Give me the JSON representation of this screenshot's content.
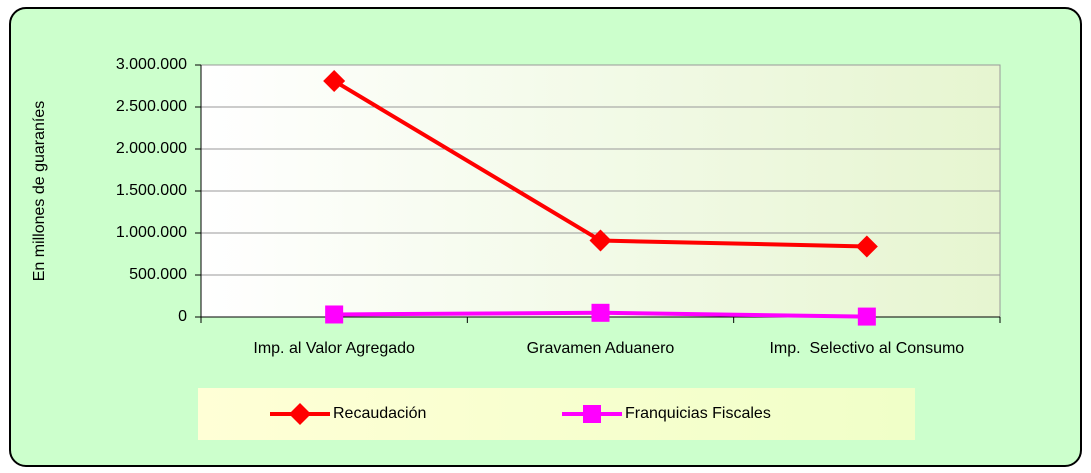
{
  "chart_data": {
    "type": "line",
    "y_label": "En millones de guaraníes",
    "categories": [
      "Imp. al Valor Agregado",
      "Gravamen Aduanero",
      "Imp.  Selectivo al Consumo"
    ],
    "series": [
      {
        "name": "Recaudación",
        "color": "#ff0000",
        "marker": "diamond",
        "values": [
          2810000,
          910000,
          840000
        ]
      },
      {
        "name": "Franquicias Fiscales",
        "color": "#ff00ff",
        "marker": "square",
        "values": [
          30000,
          50000,
          5000
        ]
      }
    ],
    "ylim": [
      0,
      3000000
    ],
    "yticks": [
      0,
      {
        "value": 500000,
        "label": "500.000"
      },
      {
        "value": 1000000,
        "label": "1.000.000"
      },
      {
        "value": 1500000,
        "label": "1.500.000"
      },
      {
        "value": 2000000,
        "label": "2.000.000"
      },
      {
        "value": 2500000,
        "label": "2.500.000"
      },
      {
        "value": 3000000,
        "label": "3.000.000"
      }
    ],
    "grid": true,
    "legend": "bottom"
  }
}
